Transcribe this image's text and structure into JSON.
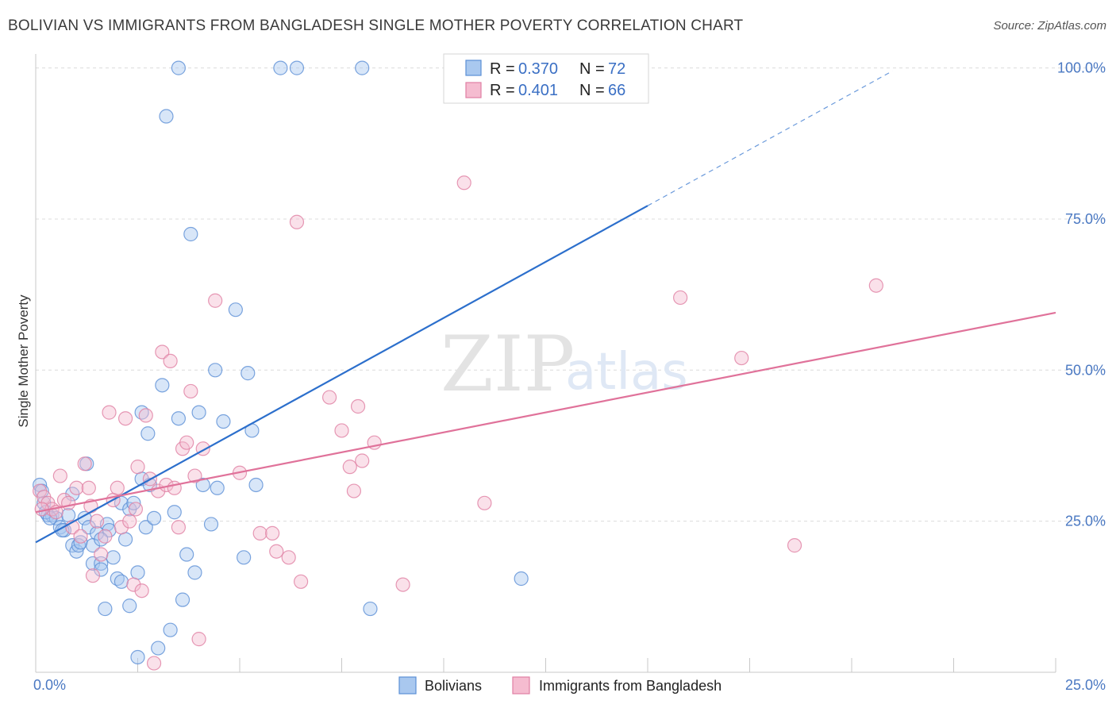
{
  "title": "BOLIVIAN VS IMMIGRANTS FROM BANGLADESH SINGLE MOTHER POVERTY CORRELATION CHART",
  "source": "Source: ZipAtlas.com",
  "watermark": {
    "zip": "ZIP",
    "atlas": "atlas"
  },
  "colors": {
    "bolivian_fill": "#a9c8ef",
    "bolivian_stroke": "#5b8fd6",
    "bolivian_line": "#2c6fcc",
    "bangladesh_fill": "#f5bcd0",
    "bangladesh_stroke": "#e07fa3",
    "bangladesh_line": "#e0729a",
    "grid": "#dcdcdc",
    "tick_text": "#4a78c2"
  },
  "legend": {
    "rows": [
      {
        "r_label": "R =",
        "r_value": "0.370",
        "n_label": "N =",
        "n_value": "72"
      },
      {
        "r_label": "R =",
        "r_value": "0.401",
        "n_label": "N =",
        "n_value": "66"
      }
    ]
  },
  "chart_data": {
    "type": "scatter",
    "title": "BOLIVIAN VS IMMIGRANTS FROM BANGLADESH SINGLE MOTHER POVERTY CORRELATION CHART",
    "xlabel": "",
    "ylabel": "Single Mother Poverty",
    "xlim": [
      0,
      25
    ],
    "ylim": [
      0,
      101
    ],
    "x_tick_labels": [
      "0.0%",
      "25.0%"
    ],
    "y_ticks": [
      25,
      50,
      75,
      100
    ],
    "y_tick_labels": [
      "25.0%",
      "50.0%",
      "75.0%",
      "100.0%"
    ],
    "grid": true,
    "legend_position": "bottom",
    "series": [
      {
        "name": "Bolivians",
        "r": 0.37,
        "n": 72,
        "trend": {
          "x0": 0,
          "y0": 21.5,
          "x1": 15,
          "y1": 77.2,
          "dashed_to_x": 21,
          "dashed_to_y": 99.5
        },
        "points": [
          [
            0.1,
            31
          ],
          [
            0.15,
            30
          ],
          [
            0.2,
            28
          ],
          [
            0.3,
            26
          ],
          [
            0.4,
            26
          ],
          [
            0.5,
            25.5
          ],
          [
            0.6,
            24
          ],
          [
            0.7,
            23.5
          ],
          [
            0.8,
            26
          ],
          [
            0.9,
            21
          ],
          [
            1.0,
            20
          ],
          [
            1.05,
            21
          ],
          [
            1.1,
            21.5
          ],
          [
            1.2,
            25.5
          ],
          [
            1.3,
            24
          ],
          [
            1.4,
            18
          ],
          [
            1.5,
            23
          ],
          [
            1.6,
            18
          ],
          [
            1.6,
            17
          ],
          [
            1.7,
            10.5
          ],
          [
            1.75,
            24.5
          ],
          [
            1.8,
            23.5
          ],
          [
            1.9,
            19
          ],
          [
            2.0,
            15.5
          ],
          [
            2.1,
            28
          ],
          [
            2.2,
            22
          ],
          [
            2.3,
            11
          ],
          [
            2.3,
            27
          ],
          [
            2.4,
            28
          ],
          [
            2.5,
            2.5
          ],
          [
            2.6,
            32
          ],
          [
            2.6,
            43
          ],
          [
            2.7,
            24
          ],
          [
            2.75,
            39.5
          ],
          [
            2.9,
            25.5
          ],
          [
            3.0,
            4
          ],
          [
            3.1,
            47.5
          ],
          [
            3.2,
            92
          ],
          [
            3.3,
            7
          ],
          [
            3.4,
            26.5
          ],
          [
            3.5,
            42
          ],
          [
            3.6,
            12
          ],
          [
            3.8,
            72.5
          ],
          [
            3.9,
            16.5
          ],
          [
            4.0,
            43
          ],
          [
            4.1,
            31
          ],
          [
            4.3,
            24.5
          ],
          [
            4.4,
            50
          ],
          [
            4.45,
            30.5
          ],
          [
            4.6,
            41.5
          ],
          [
            4.9,
            60
          ],
          [
            5.1,
            19
          ],
          [
            5.2,
            49.5
          ],
          [
            5.3,
            40
          ],
          [
            5.4,
            31
          ],
          [
            6.0,
            100
          ],
          [
            3.5,
            100
          ],
          [
            6.4,
            100
          ],
          [
            8.0,
            100
          ],
          [
            8.2,
            10.5
          ],
          [
            11.9,
            15.5
          ],
          [
            1.4,
            21
          ],
          [
            0.25,
            26.5
          ],
          [
            0.35,
            25.5
          ],
          [
            0.65,
            23.5
          ],
          [
            1.25,
            34.5
          ],
          [
            2.5,
            16.5
          ],
          [
            3.7,
            19.5
          ],
          [
            2.1,
            15
          ],
          [
            0.9,
            29.5
          ],
          [
            1.6,
            22
          ],
          [
            2.8,
            31
          ]
        ]
      },
      {
        "name": "Immigrants from Bangladesh",
        "r": 0.401,
        "n": 66,
        "trend": {
          "x0": 0,
          "y0": 26.5,
          "x1": 25,
          "y1": 59.5
        },
        "points": [
          [
            0.1,
            30
          ],
          [
            0.2,
            29
          ],
          [
            0.3,
            28
          ],
          [
            0.4,
            27
          ],
          [
            0.5,
            26.5
          ],
          [
            0.6,
            32.5
          ],
          [
            0.7,
            28.5
          ],
          [
            0.8,
            28
          ],
          [
            0.9,
            24
          ],
          [
            1.0,
            30.5
          ],
          [
            1.1,
            22.5
          ],
          [
            1.2,
            34.5
          ],
          [
            1.3,
            30.5
          ],
          [
            1.4,
            16
          ],
          [
            1.5,
            25
          ],
          [
            1.6,
            19.5
          ],
          [
            1.7,
            22.5
          ],
          [
            1.8,
            43
          ],
          [
            1.9,
            28.5
          ],
          [
            2.0,
            30.5
          ],
          [
            2.1,
            24
          ],
          [
            2.2,
            42
          ],
          [
            2.3,
            25
          ],
          [
            2.4,
            14.5
          ],
          [
            2.5,
            34
          ],
          [
            2.6,
            13.5
          ],
          [
            2.7,
            42.5
          ],
          [
            2.8,
            32
          ],
          [
            2.9,
            1.5
          ],
          [
            3.0,
            30
          ],
          [
            3.1,
            53
          ],
          [
            3.2,
            31
          ],
          [
            3.3,
            51.5
          ],
          [
            3.4,
            30.5
          ],
          [
            3.6,
            37
          ],
          [
            3.7,
            38
          ],
          [
            3.8,
            46.5
          ],
          [
            3.9,
            32.5
          ],
          [
            4.0,
            5.5
          ],
          [
            4.1,
            37
          ],
          [
            4.4,
            61.5
          ],
          [
            5.0,
            33
          ],
          [
            5.5,
            23
          ],
          [
            5.8,
            23
          ],
          [
            5.9,
            20
          ],
          [
            6.2,
            19
          ],
          [
            6.4,
            74.5
          ],
          [
            6.5,
            15
          ],
          [
            7.2,
            45.5
          ],
          [
            7.5,
            40
          ],
          [
            7.7,
            34
          ],
          [
            7.8,
            30
          ],
          [
            7.9,
            44
          ],
          [
            8.0,
            35
          ],
          [
            8.3,
            38
          ],
          [
            9.0,
            14.5
          ],
          [
            10.5,
            81
          ],
          [
            11.0,
            28
          ],
          [
            15.8,
            62
          ],
          [
            17.3,
            52
          ],
          [
            18.6,
            21
          ],
          [
            20.6,
            64
          ],
          [
            0.15,
            27
          ],
          [
            1.35,
            27.5
          ],
          [
            2.45,
            27
          ],
          [
            3.5,
            24
          ]
        ]
      }
    ]
  }
}
